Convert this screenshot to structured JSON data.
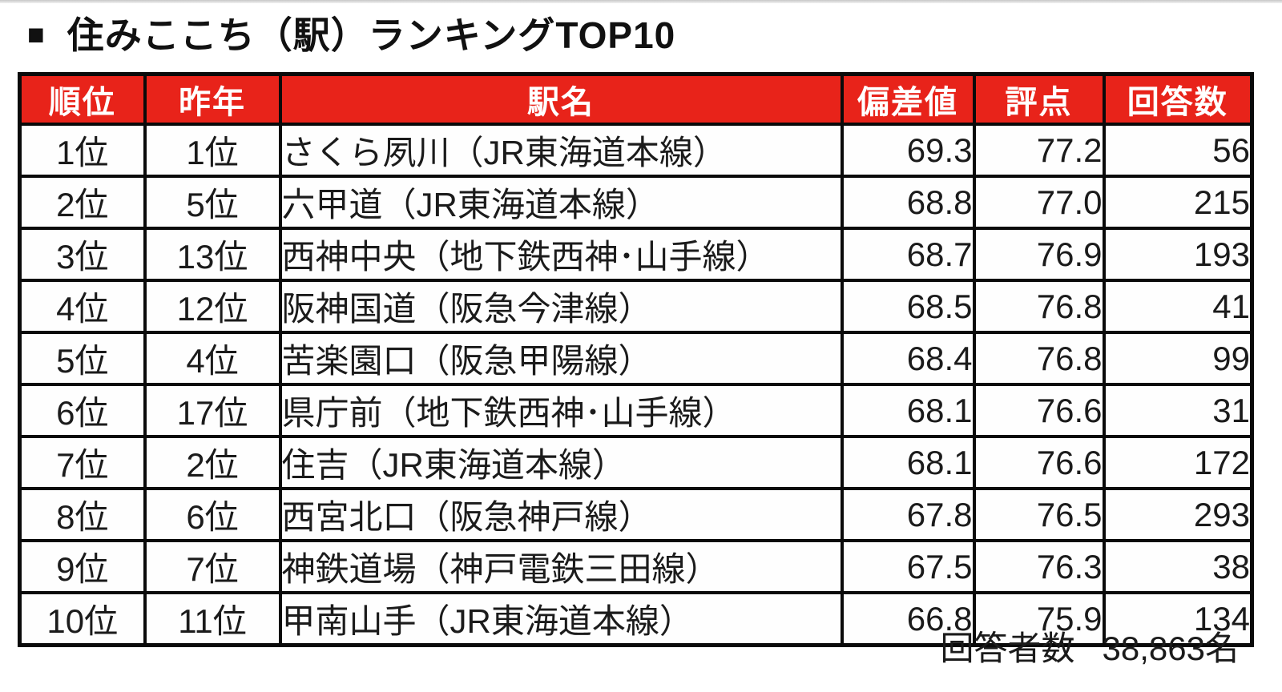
{
  "header": {
    "bullet": "■",
    "title": "住みここち（駅）ランキングTOP10"
  },
  "chart_data": {
    "type": "table",
    "title": "住みここち（駅）ランキングTOP10",
    "columns": [
      "順位",
      "昨年",
      "駅名",
      "偏差値",
      "評点",
      "回答数"
    ],
    "rows": [
      {
        "rank": "1位",
        "last_year": "1位",
        "station": "さくら夙川（JR東海道本線）",
        "deviation": "69.3",
        "score": "77.2",
        "responses": "56"
      },
      {
        "rank": "2位",
        "last_year": "5位",
        "station": "六甲道（JR東海道本線）",
        "deviation": "68.8",
        "score": "77.0",
        "responses": "215"
      },
      {
        "rank": "3位",
        "last_year": "13位",
        "station": "西神中央（地下鉄西神･山手線）",
        "deviation": "68.7",
        "score": "76.9",
        "responses": "193"
      },
      {
        "rank": "4位",
        "last_year": "12位",
        "station": "阪神国道（阪急今津線）",
        "deviation": "68.5",
        "score": "76.8",
        "responses": "41"
      },
      {
        "rank": "5位",
        "last_year": "4位",
        "station": "苦楽園口（阪急甲陽線）",
        "deviation": "68.4",
        "score": "76.8",
        "responses": "99"
      },
      {
        "rank": "6位",
        "last_year": "17位",
        "station": "県庁前（地下鉄西神･山手線）",
        "deviation": "68.1",
        "score": "76.6",
        "responses": "31"
      },
      {
        "rank": "7位",
        "last_year": "2位",
        "station": "住吉（JR東海道本線）",
        "deviation": "68.1",
        "score": "76.6",
        "responses": "172"
      },
      {
        "rank": "8位",
        "last_year": "6位",
        "station": "西宮北口（阪急神戸線）",
        "deviation": "67.8",
        "score": "76.5",
        "responses": "293"
      },
      {
        "rank": "9位",
        "last_year": "7位",
        "station": "神鉄道場（神戸電鉄三田線）",
        "deviation": "67.5",
        "score": "76.3",
        "responses": "38"
      },
      {
        "rank": "10位",
        "last_year": "11位",
        "station": "甲南山手（JR東海道本線）",
        "deviation": "66.8",
        "score": "75.9",
        "responses": "134"
      }
    ]
  },
  "footer": {
    "respondents_label": "回答者数",
    "respondents_value": "38,863名"
  },
  "colors": {
    "header_bg": "#e8231a",
    "header_text": "#ffffff",
    "border": "#0a0a0a",
    "body_text": "#1b1b1b",
    "background": "#ffffff"
  }
}
